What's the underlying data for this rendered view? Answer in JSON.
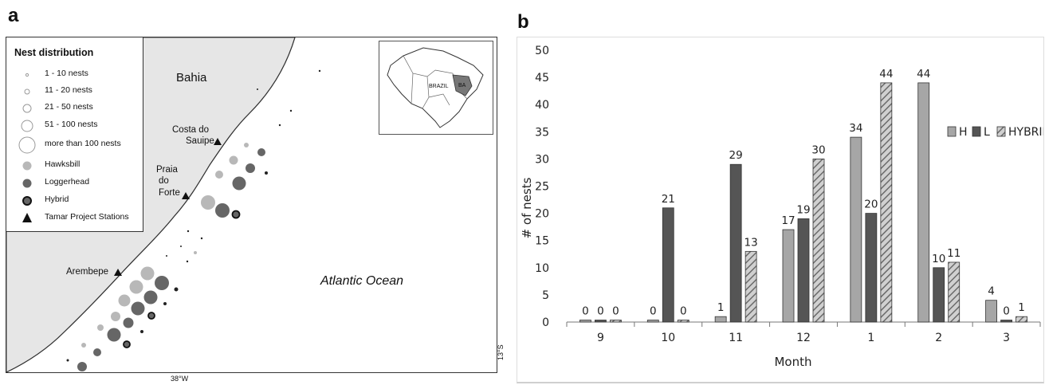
{
  "figure": {
    "panel_a_letter": "a",
    "panel_b_letter": "b"
  },
  "map": {
    "region_label": "Bahia",
    "ocean_label": "Atlantic Ocean",
    "stations": [
      {
        "name_lines": [
          "Costa do",
          "Sauipe"
        ]
      },
      {
        "name_lines": [
          "Praia",
          "do",
          "Forte"
        ]
      },
      {
        "name_lines": [
          "Arembepe"
        ]
      }
    ],
    "inset": {
      "country_label": "BRAZIL",
      "state_label": "BA"
    },
    "longitude_label": "38°W",
    "latitude_label": "13°S",
    "legend": {
      "title": "Nest distribution",
      "items": [
        {
          "label": "1 - 10 nests",
          "symbol": "size-1"
        },
        {
          "label": "11 - 20 nests",
          "symbol": "size-2"
        },
        {
          "label": "21 - 50 nests",
          "symbol": "size-3"
        },
        {
          "label": "51 - 100 nests",
          "symbol": "size-4"
        },
        {
          "label": "more than 100 nests",
          "symbol": "size-5"
        },
        {
          "label": "Hawksbill",
          "symbol": "hawksbill-circle"
        },
        {
          "label": "Loggerhead",
          "symbol": "loggerhead-circle"
        },
        {
          "label": "Hybrid",
          "symbol": "hybrid-circle"
        },
        {
          "label": "Tamar Project Stations",
          "symbol": "station-triangle"
        }
      ]
    },
    "colors": {
      "land": "#e6e6e6",
      "hawksbill": "#b8b8b8",
      "loggerhead": "#666666",
      "hybrid": "#666666"
    }
  },
  "chart_data": {
    "type": "bar",
    "categories": [
      "9",
      "10",
      "11",
      "12",
      "1",
      "2",
      "3"
    ],
    "series": [
      {
        "name": "H",
        "values": [
          0,
          0,
          1,
          17,
          34,
          44,
          4
        ],
        "color": "#a6a6a6",
        "pattern": "solid"
      },
      {
        "name": "L",
        "values": [
          0,
          21,
          29,
          19,
          20,
          10,
          0
        ],
        "color": "#555555",
        "pattern": "solid"
      },
      {
        "name": "HYBRID",
        "values": [
          0,
          0,
          13,
          30,
          44,
          11,
          1
        ],
        "color": "#9a9a9a",
        "pattern": "hatched"
      }
    ],
    "title": "",
    "xlabel": "Month",
    "ylabel": "# of nests",
    "ylim": [
      0,
      50
    ],
    "yticks": [
      0,
      5,
      10,
      15,
      20,
      25,
      30,
      35,
      40,
      45,
      50
    ],
    "legend_position": "right",
    "grid": false
  }
}
